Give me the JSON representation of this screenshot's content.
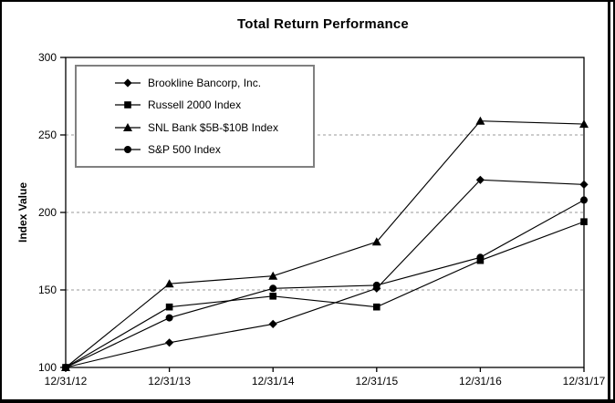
{
  "title": "Total Return Performance",
  "ylabel": "Index Value",
  "colors": {
    "series": "#000000",
    "gridline": "#999999",
    "axis": "#000000",
    "legend_border": "#808080",
    "background": "#ffffff",
    "text": "#000000"
  },
  "chart_data": {
    "type": "line",
    "title": "Total Return Performance",
    "xlabel": "",
    "ylabel": "Index Value",
    "categories": [
      "12/31/12",
      "12/31/13",
      "12/31/14",
      "12/31/15",
      "12/31/16",
      "12/31/17"
    ],
    "series": [
      {
        "name": "Brookline Bancorp, Inc.",
        "marker": "diamond",
        "values": [
          100,
          116,
          128,
          151,
          221,
          218
        ]
      },
      {
        "name": "Russell 2000 Index",
        "marker": "square",
        "values": [
          100,
          139,
          146,
          139,
          169,
          194
        ]
      },
      {
        "name": "SNL Bank $5B-$10B Index",
        "marker": "triangle",
        "values": [
          100,
          154,
          159,
          181,
          259,
          257
        ]
      },
      {
        "name": "S&P 500 Index",
        "marker": "circle",
        "values": [
          100,
          132,
          151,
          153,
          171,
          208
        ]
      }
    ],
    "ylim": [
      100,
      300
    ],
    "y_ticks": [
      100,
      150,
      200,
      250,
      300
    ],
    "gridlines": {
      "y_values": [
        150,
        200,
        250
      ],
      "style": "dashed"
    },
    "legend_position": "upper-left-inside",
    "line_color": "#000000",
    "marker_color": "#000000"
  }
}
